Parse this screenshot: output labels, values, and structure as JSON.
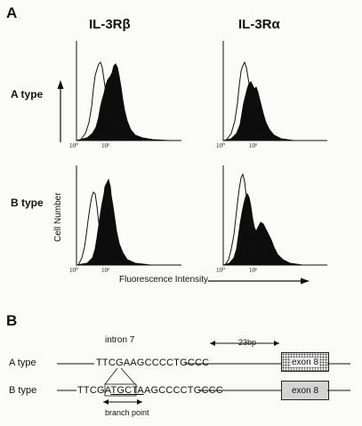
{
  "panel_a": {
    "letter": "A",
    "columns": [
      "IL-3Rβ",
      "IL-3Rα"
    ],
    "rows": [
      "A type",
      "B type"
    ],
    "y_label": "Cell Number",
    "x_label": "Fluorescence Intensity",
    "tick_labels": [
      "10⁰",
      "10¹"
    ]
  },
  "panel_b": {
    "letter": "B",
    "intron_label": "intron 7",
    "distance_label": "23bp",
    "a_type": {
      "label": "A type",
      "sequence": "TTCGAAGCCCCTGCCC",
      "exon": "exon 8"
    },
    "b_type": {
      "label": "B type",
      "seq_prefix": "TTCGA",
      "seq_insert": "TGCTA",
      "seq_suffix": "AGCCCCTGCCC",
      "exon": "exon 8"
    },
    "branch_point_label": "branch point"
  },
  "colors": {
    "ink": "#111111",
    "fill": "#0d0d0d",
    "exon_b": "#d4d4d4"
  }
}
